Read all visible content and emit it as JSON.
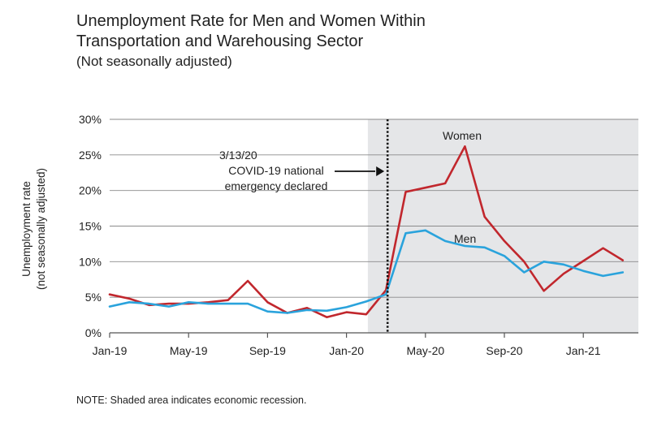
{
  "title_line1": "Unemployment Rate for Men and Women Within",
  "title_line2": "Transportation and Warehousing Sector",
  "subtitle": "(Not seasonally adjusted)",
  "note": "NOTE: Shaded area indicates economic recession.",
  "chart_data": {
    "type": "line",
    "ylabel_line1": "Unemployment rate",
    "ylabel_line2": "(not seasonally adjusted)",
    "ylim": [
      0,
      30
    ],
    "yticks": [
      0,
      5,
      10,
      15,
      20,
      25,
      30
    ],
    "ytick_labels": [
      "0%",
      "5%",
      "10%",
      "15%",
      "20%",
      "25%",
      "30%"
    ],
    "x": [
      "2019-01",
      "2019-02",
      "2019-03",
      "2019-04",
      "2019-05",
      "2019-06",
      "2019-07",
      "2019-08",
      "2019-09",
      "2019-10",
      "2019-11",
      "2019-12",
      "2020-01",
      "2020-02",
      "2020-03",
      "2020-04",
      "2020-05",
      "2020-06",
      "2020-07",
      "2020-08",
      "2020-09",
      "2020-10",
      "2020-11",
      "2020-12",
      "2021-01",
      "2021-02",
      "2021-03"
    ],
    "xtick_labels": [
      {
        "x": "2019-01",
        "label": "Jan-19"
      },
      {
        "x": "2019-05",
        "label": "May-19"
      },
      {
        "x": "2019-09",
        "label": "Sep-19"
      },
      {
        "x": "2020-01",
        "label": "Jan-20"
      },
      {
        "x": "2020-05",
        "label": "May-20"
      },
      {
        "x": "2020-09",
        "label": "Sep-20"
      },
      {
        "x": "2021-01",
        "label": "Jan-21"
      }
    ],
    "recession_shading": {
      "start": "2020-02",
      "end": "2021-03"
    },
    "grid": true,
    "series": [
      {
        "name": "Women",
        "color": "#c1272d",
        "values": [
          5.4,
          4.8,
          3.9,
          4.1,
          4.1,
          4.3,
          4.6,
          7.3,
          4.3,
          2.8,
          3.5,
          2.2,
          2.9,
          2.6,
          6.0,
          19.8,
          20.4,
          21.0,
          26.2,
          16.3,
          12.9,
          10.0,
          5.9,
          8.3,
          10.1,
          11.9,
          10.2
        ]
      },
      {
        "name": "Men",
        "color": "#2aa3dc",
        "values": [
          3.7,
          4.3,
          4.1,
          3.7,
          4.3,
          4.1,
          4.1,
          4.1,
          3.0,
          2.8,
          3.2,
          3.1,
          3.6,
          4.4,
          5.4,
          14.0,
          14.4,
          12.9,
          12.2,
          12.0,
          10.8,
          8.5,
          10.0,
          9.6,
          8.7,
          8.0,
          8.5
        ]
      }
    ],
    "annotation": {
      "x": "2020-03",
      "lines": [
        "3/13/20",
        "COVID-19 national",
        "emergency declared"
      ]
    }
  }
}
